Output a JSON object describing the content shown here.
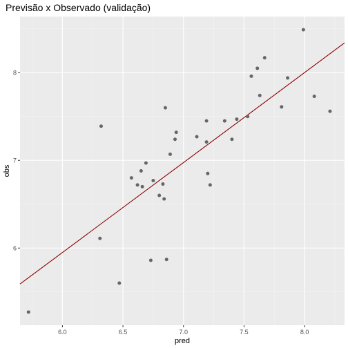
{
  "chart_data": {
    "type": "scatter",
    "title": "Previsão x Observado (validação)",
    "xlabel": "pred",
    "ylabel": "obs",
    "xlim": [
      5.65,
      8.33
    ],
    "ylim": [
      5.12,
      8.64
    ],
    "x_ticks": [
      6.0,
      6.5,
      7.0,
      7.5,
      8.0
    ],
    "x_tick_labels": [
      "6.0",
      "6.5",
      "7.0",
      "7.5",
      "8.0"
    ],
    "y_ticks": [
      6,
      7,
      8
    ],
    "y_tick_labels": [
      "6",
      "7",
      "8"
    ],
    "grid": true,
    "points": [
      {
        "x": 5.72,
        "y": 5.27
      },
      {
        "x": 6.31,
        "y": 6.11
      },
      {
        "x": 6.32,
        "y": 7.39
      },
      {
        "x": 6.47,
        "y": 5.6
      },
      {
        "x": 6.57,
        "y": 6.8
      },
      {
        "x": 6.62,
        "y": 6.72
      },
      {
        "x": 6.65,
        "y": 6.88
      },
      {
        "x": 6.66,
        "y": 6.7
      },
      {
        "x": 6.69,
        "y": 6.97
      },
      {
        "x": 6.73,
        "y": 5.86
      },
      {
        "x": 6.75,
        "y": 6.77
      },
      {
        "x": 6.8,
        "y": 6.6
      },
      {
        "x": 6.83,
        "y": 6.73
      },
      {
        "x": 6.84,
        "y": 6.56
      },
      {
        "x": 6.85,
        "y": 7.6
      },
      {
        "x": 6.86,
        "y": 5.87
      },
      {
        "x": 6.89,
        "y": 7.07
      },
      {
        "x": 6.93,
        "y": 7.24
      },
      {
        "x": 6.94,
        "y": 7.32
      },
      {
        "x": 7.11,
        "y": 7.27
      },
      {
        "x": 7.19,
        "y": 7.21
      },
      {
        "x": 7.19,
        "y": 7.45
      },
      {
        "x": 7.2,
        "y": 6.85
      },
      {
        "x": 7.22,
        "y": 6.72
      },
      {
        "x": 7.34,
        "y": 7.45
      },
      {
        "x": 7.4,
        "y": 7.24
      },
      {
        "x": 7.44,
        "y": 7.47
      },
      {
        "x": 7.53,
        "y": 7.5
      },
      {
        "x": 7.56,
        "y": 7.96
      },
      {
        "x": 7.61,
        "y": 8.05
      },
      {
        "x": 7.63,
        "y": 7.74
      },
      {
        "x": 7.67,
        "y": 8.17
      },
      {
        "x": 7.81,
        "y": 7.61
      },
      {
        "x": 7.86,
        "y": 7.94
      },
      {
        "x": 7.99,
        "y": 8.49
      },
      {
        "x": 8.08,
        "y": 7.73
      },
      {
        "x": 8.21,
        "y": 7.56
      }
    ],
    "reference_line": {
      "x": [
        5.65,
        8.33
      ],
      "y": [
        5.59,
        8.34
      ]
    },
    "colors": {
      "panel": "#ebebeb",
      "grid_major": "#ffffff",
      "grid_minor": "#f5f5f5",
      "point": "#666666",
      "line": "#8b0000",
      "tick_label": "#4d4d4d",
      "tick": "#333333"
    }
  }
}
